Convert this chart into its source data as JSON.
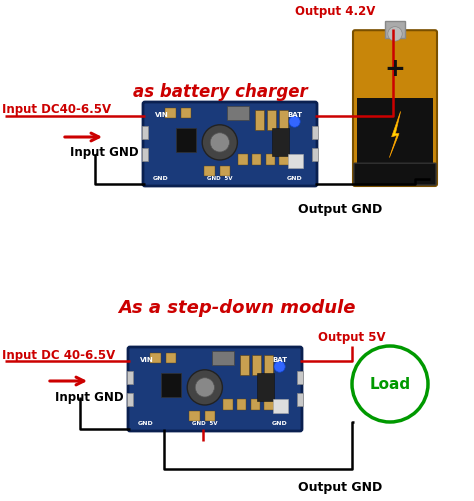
{
  "bg_color": "#ffffff",
  "title1": "as battery charger",
  "title2": "As a step-down module",
  "title_color": "#cc0000",
  "title_fontsize": 12,
  "label_color_red": "#cc0000",
  "label_color_black": "#000000",
  "arrow_color": "#cc0000",
  "line_color_red": "#cc0000",
  "line_color_black": "#000000",
  "labels_top": {
    "input_dc": "Input DC40-6.5V",
    "input_gnd": "Input GND",
    "output_42": "Output 4.2V",
    "output_gnd": "Output GND"
  },
  "labels_bottom": {
    "input_dc": "Input DC 40-6.5V",
    "input_gnd": "Input GND",
    "output_5v": "Output 5V",
    "output_gnd": "Output GND"
  },
  "pcb_color": "#1a3a7a",
  "pcb_edge": "#0a2050",
  "battery_gold": "#c8860a",
  "battery_dark": "#111111",
  "battery_cap": "#aaaaaa",
  "load_circle_color": "#009900",
  "load_text": "Load",
  "vin_label": "VIN",
  "bat_label": "BAT",
  "gnd_label": "GND",
  "gnd5v_label": "GND  5V"
}
